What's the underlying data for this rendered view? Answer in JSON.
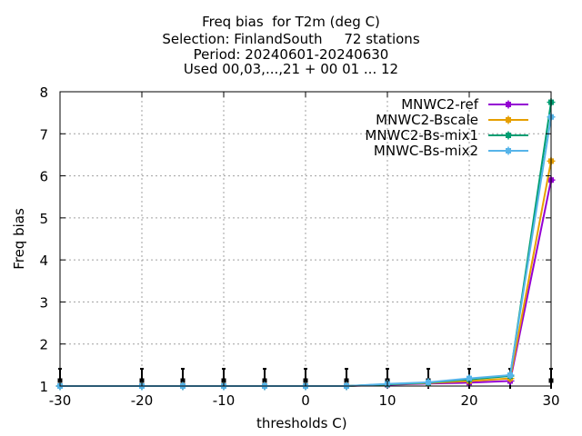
{
  "chart_data": {
    "type": "line",
    "title_lines": [
      "Freq bias  for T2m (deg C)",
      "Selection: FinlandSouth     72 stations",
      "Period: 20240601-20240630",
      "Used 00,03,...,21 + 00 01 ... 12"
    ],
    "xlabel": "thresholds C)",
    "ylabel": "Freq bias",
    "xlim": [
      -30,
      30
    ],
    "ylim": [
      1,
      8
    ],
    "xticks": [
      -30,
      -20,
      -10,
      0,
      10,
      20,
      30
    ],
    "yticks": [
      1,
      2,
      3,
      4,
      5,
      6,
      7,
      8
    ],
    "grid": true,
    "legend_position": "top-right",
    "x": [
      -30,
      -20,
      -15,
      -10,
      -5,
      0,
      5,
      10,
      15,
      20,
      25,
      30
    ],
    "series": [
      {
        "name": "MNWC2-ref",
        "color": "#9400d3",
        "values": [
          1.0,
          1.0,
          1.0,
          1.0,
          1.0,
          1.0,
          1.0,
          1.03,
          1.06,
          1.08,
          1.12,
          5.9
        ]
      },
      {
        "name": "MNWC2-Bscale",
        "color": "#e69f00",
        "values": [
          1.0,
          1.0,
          1.0,
          1.0,
          1.0,
          1.0,
          1.0,
          1.04,
          1.07,
          1.12,
          1.18,
          6.35
        ]
      },
      {
        "name": "MNWC2-Bs-mix1",
        "color": "#009e73",
        "values": [
          1.0,
          1.0,
          1.0,
          1.0,
          1.0,
          1.0,
          1.0,
          1.04,
          1.08,
          1.16,
          1.24,
          7.75
        ]
      },
      {
        "name": "MNWC-Bs-mix2",
        "color": "#56b4e9",
        "values": [
          1.0,
          1.0,
          1.0,
          1.0,
          1.0,
          1.0,
          1.0,
          1.05,
          1.09,
          1.18,
          1.26,
          7.4
        ]
      }
    ],
    "error_bar_x": [
      -30,
      -20,
      -15,
      -10,
      -5,
      0,
      5,
      10,
      15,
      20,
      25,
      30
    ]
  }
}
